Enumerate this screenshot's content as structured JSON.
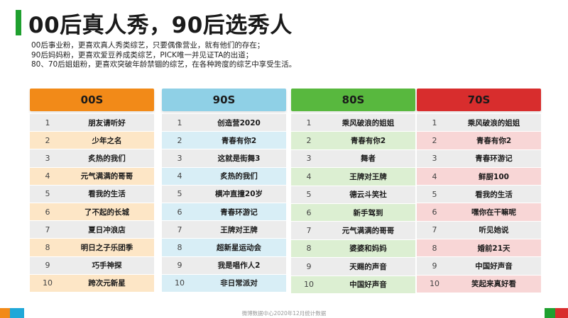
{
  "title": "00后真人秀，90后选秀人",
  "description": [
    "00后事业粉，更喜欢真人秀类综艺，只要偶像营业，就有他们的存在；",
    "90后妈妈粉，更喜欢爱豆养成类综艺，PICK唯一并见证TA的出道；",
    "80、70后姐姐粉，更喜欢突破年龄禁锢的综艺，在各种跨度的综艺中享受生活。"
  ],
  "colors": {
    "accent_green": "#1fa02f",
    "col_00s": "#f28a18",
    "col_90s": "#8fd0e6",
    "col_80s": "#58b83e",
    "col_70s": "#d82d2d"
  },
  "tables": [
    {
      "header": "00S",
      "rows": [
        {
          "rank": "1",
          "name": "朋友请听好"
        },
        {
          "rank": "2",
          "name": "少年之名"
        },
        {
          "rank": "3",
          "name": "炙热的我们"
        },
        {
          "rank": "4",
          "name": "元气满满的哥哥"
        },
        {
          "rank": "5",
          "name": "看我的生活"
        },
        {
          "rank": "6",
          "name": "了不起的长城"
        },
        {
          "rank": "7",
          "name": "夏日冲浪店"
        },
        {
          "rank": "8",
          "name": "明日之子乐团季"
        },
        {
          "rank": "9",
          "name": "巧手神探"
        },
        {
          "rank": "10",
          "name": "跨次元新星"
        }
      ]
    },
    {
      "header": "90S",
      "rows": [
        {
          "rank": "1",
          "name": "创造营2020"
        },
        {
          "rank": "2",
          "name": "青春有你2"
        },
        {
          "rank": "3",
          "name": "这就是街舞3"
        },
        {
          "rank": "4",
          "name": "炙热的我们"
        },
        {
          "rank": "5",
          "name": "横冲直撞20岁"
        },
        {
          "rank": "6",
          "name": "青春环游记"
        },
        {
          "rank": "7",
          "name": "王牌对王牌"
        },
        {
          "rank": "8",
          "name": "超新星运动会"
        },
        {
          "rank": "9",
          "name": "我是唱作人2"
        },
        {
          "rank": "10",
          "name": "非日常派对"
        }
      ]
    },
    {
      "header": "80S",
      "rows": [
        {
          "rank": "1",
          "name": "乘风破浪的姐姐"
        },
        {
          "rank": "2",
          "name": "青春有你2"
        },
        {
          "rank": "3",
          "name": "舞者"
        },
        {
          "rank": "4",
          "name": "王牌对王牌"
        },
        {
          "rank": "5",
          "name": "德云斗笑社"
        },
        {
          "rank": "6",
          "name": "新手驾到"
        },
        {
          "rank": "7",
          "name": "元气满满的哥哥"
        },
        {
          "rank": "8",
          "name": "婆婆和妈妈"
        },
        {
          "rank": "9",
          "name": "天赐的声音"
        },
        {
          "rank": "10",
          "name": "中国好声音"
        }
      ]
    },
    {
      "header": "70S",
      "rows": [
        {
          "rank": "1",
          "name": "乘风破浪的姐姐"
        },
        {
          "rank": "2",
          "name": "青春有你2"
        },
        {
          "rank": "3",
          "name": "青春环游记"
        },
        {
          "rank": "4",
          "name": "鲜厨100"
        },
        {
          "rank": "5",
          "name": "看我的生活"
        },
        {
          "rank": "6",
          "name": "嘿你在干嘛呢"
        },
        {
          "rank": "7",
          "name": "听见她说"
        },
        {
          "rank": "8",
          "name": "婚前21天"
        },
        {
          "rank": "9",
          "name": "中国好声音"
        },
        {
          "rank": "10",
          "name": "笑起来真好看"
        }
      ]
    }
  ],
  "footer": "微博数据中心2020年12月统计数据"
}
